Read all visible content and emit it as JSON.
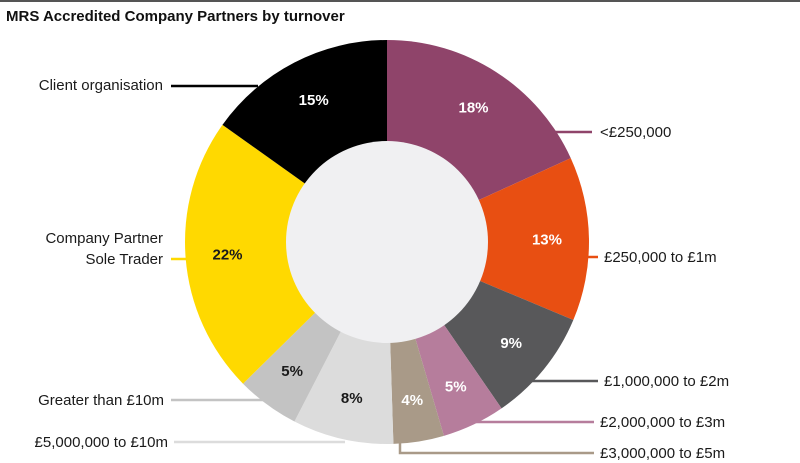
{
  "chart_data": {
    "type": "pie",
    "title": "MRS Accredited Company Partners by turnover",
    "donut": true,
    "slices": [
      {
        "label": "<£250,000",
        "value": 18,
        "display": "18%",
        "color": "#8f446a",
        "text_color": "#ffffff"
      },
      {
        "label": "£250,000 to £1m",
        "value": 13,
        "display": "13%",
        "color": "#e84f12",
        "text_color": "#ffffff"
      },
      {
        "label": "£1,000,000 to £2m",
        "value": 9,
        "display": "9%",
        "color": "#58585a",
        "text_color": "#ffffff"
      },
      {
        "label": "£2,000,000 to £3m",
        "value": 5,
        "display": "5%",
        "color": "#b67d9c",
        "text_color": "#ffffff"
      },
      {
        "label": "£3,000,000 to £5m",
        "value": 4,
        "display": "4%",
        "color": "#a99a88",
        "text_color": "#ffffff"
      },
      {
        "label": "£5,000,000 to £10m",
        "value": 8,
        "display": "8%",
        "color": "#dcdcdc",
        "text_color": "#1a1a1a"
      },
      {
        "label": "Greater than £10m",
        "value": 5,
        "display": "5%",
        "color": "#c3c3c3",
        "text_color": "#1a1a1a"
      },
      {
        "label": "Company Partner\nSole Trader",
        "value": 22,
        "display": "22%",
        "color": "#ffd900",
        "text_color": "#1a1a1a"
      },
      {
        "label": "Client organisation",
        "value": 15,
        "display": "15%",
        "color": "#000000",
        "text_color": "#ffffff"
      }
    ],
    "hole_color": "#f0f0f2"
  }
}
